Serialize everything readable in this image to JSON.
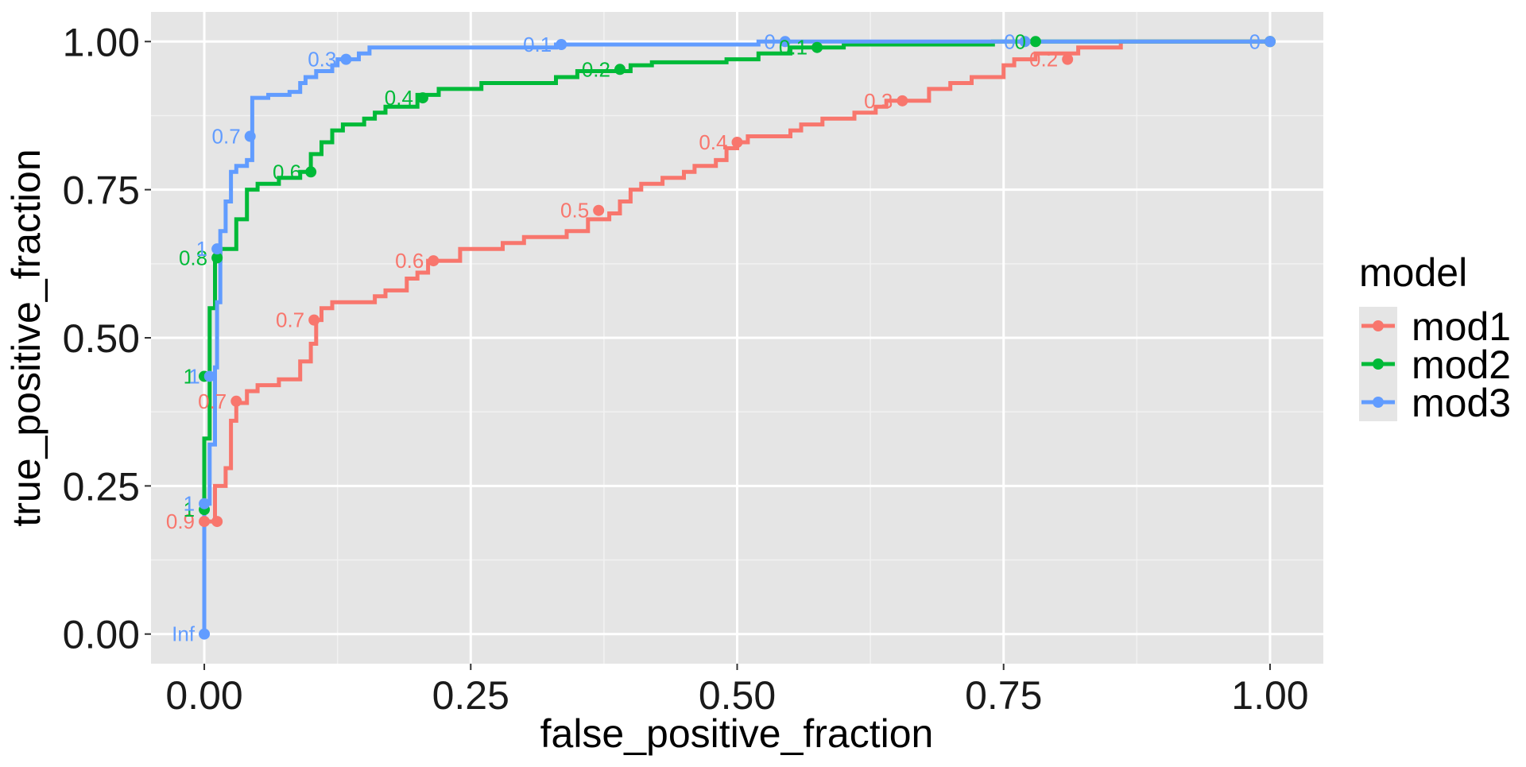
{
  "chart_data": {
    "type": "line",
    "xlabel": "false_positive_fraction",
    "ylabel": "true_positive_fraction",
    "xlim": [
      -0.05,
      1.05
    ],
    "ylim": [
      -0.05,
      1.05
    ],
    "x_ticks": [
      "0.00",
      "0.25",
      "0.50",
      "0.75",
      "1.00"
    ],
    "x_tick_values": [
      0,
      0.25,
      0.5,
      0.75,
      1.0
    ],
    "y_ticks": [
      "0.00",
      "0.25",
      "0.50",
      "0.75",
      "1.00"
    ],
    "y_tick_values": [
      0,
      0.25,
      0.5,
      0.75,
      1.0
    ],
    "grid": true,
    "legend": {
      "title": "model",
      "position": "right"
    },
    "series": [
      {
        "name": "mod1",
        "color": "#F8766D",
        "points": [
          [
            0,
            0
          ],
          [
            0,
            0.19
          ],
          [
            0.01,
            0.19
          ],
          [
            0.01,
            0.25
          ],
          [
            0.02,
            0.25
          ],
          [
            0.02,
            0.28
          ],
          [
            0.025,
            0.28
          ],
          [
            0.025,
            0.36
          ],
          [
            0.03,
            0.36
          ],
          [
            0.03,
            0.39
          ],
          [
            0.04,
            0.39
          ],
          [
            0.04,
            0.41
          ],
          [
            0.05,
            0.41
          ],
          [
            0.05,
            0.42
          ],
          [
            0.07,
            0.42
          ],
          [
            0.07,
            0.43
          ],
          [
            0.09,
            0.43
          ],
          [
            0.09,
            0.46
          ],
          [
            0.1,
            0.46
          ],
          [
            0.1,
            0.49
          ],
          [
            0.105,
            0.49
          ],
          [
            0.105,
            0.53
          ],
          [
            0.11,
            0.53
          ],
          [
            0.11,
            0.55
          ],
          [
            0.12,
            0.55
          ],
          [
            0.12,
            0.56
          ],
          [
            0.16,
            0.56
          ],
          [
            0.16,
            0.57
          ],
          [
            0.17,
            0.57
          ],
          [
            0.17,
            0.58
          ],
          [
            0.19,
            0.58
          ],
          [
            0.19,
            0.6
          ],
          [
            0.2,
            0.6
          ],
          [
            0.2,
            0.61
          ],
          [
            0.21,
            0.61
          ],
          [
            0.21,
            0.63
          ],
          [
            0.24,
            0.63
          ],
          [
            0.24,
            0.65
          ],
          [
            0.28,
            0.65
          ],
          [
            0.28,
            0.66
          ],
          [
            0.3,
            0.66
          ],
          [
            0.3,
            0.67
          ],
          [
            0.34,
            0.67
          ],
          [
            0.34,
            0.68
          ],
          [
            0.36,
            0.68
          ],
          [
            0.36,
            0.7
          ],
          [
            0.38,
            0.7
          ],
          [
            0.38,
            0.71
          ],
          [
            0.39,
            0.71
          ],
          [
            0.39,
            0.73
          ],
          [
            0.4,
            0.73
          ],
          [
            0.4,
            0.75
          ],
          [
            0.41,
            0.75
          ],
          [
            0.41,
            0.76
          ],
          [
            0.43,
            0.76
          ],
          [
            0.43,
            0.77
          ],
          [
            0.45,
            0.77
          ],
          [
            0.45,
            0.78
          ],
          [
            0.46,
            0.78
          ],
          [
            0.46,
            0.79
          ],
          [
            0.48,
            0.79
          ],
          [
            0.48,
            0.8
          ],
          [
            0.49,
            0.8
          ],
          [
            0.49,
            0.82
          ],
          [
            0.5,
            0.82
          ],
          [
            0.5,
            0.83
          ],
          [
            0.51,
            0.83
          ],
          [
            0.51,
            0.84
          ],
          [
            0.55,
            0.84
          ],
          [
            0.55,
            0.85
          ],
          [
            0.56,
            0.85
          ],
          [
            0.56,
            0.86
          ],
          [
            0.58,
            0.86
          ],
          [
            0.58,
            0.87
          ],
          [
            0.61,
            0.87
          ],
          [
            0.61,
            0.88
          ],
          [
            0.63,
            0.88
          ],
          [
            0.63,
            0.89
          ],
          [
            0.64,
            0.89
          ],
          [
            0.64,
            0.9
          ],
          [
            0.68,
            0.9
          ],
          [
            0.68,
            0.92
          ],
          [
            0.7,
            0.92
          ],
          [
            0.7,
            0.93
          ],
          [
            0.72,
            0.93
          ],
          [
            0.72,
            0.94
          ],
          [
            0.75,
            0.94
          ],
          [
            0.75,
            0.96
          ],
          [
            0.76,
            0.96
          ],
          [
            0.76,
            0.97
          ],
          [
            0.78,
            0.97
          ],
          [
            0.78,
            0.98
          ],
          [
            0.82,
            0.98
          ],
          [
            0.82,
            0.99
          ],
          [
            0.86,
            0.99
          ],
          [
            0.86,
            1.0
          ],
          [
            1.0,
            1.0
          ]
        ],
        "markers": [
          {
            "x": 0.0,
            "y": 0.19,
            "label": "0.9"
          },
          {
            "x": 0.012,
            "y": 0.19,
            "label": ""
          },
          {
            "x": 0.03,
            "y": 0.393,
            "label": "0.7"
          },
          {
            "x": 0.103,
            "y": 0.53,
            "label": "0.7"
          },
          {
            "x": 0.215,
            "y": 0.63,
            "label": "0.6"
          },
          {
            "x": 0.37,
            "y": 0.715,
            "label": "0.5"
          },
          {
            "x": 0.5,
            "y": 0.83,
            "label": "0.4"
          },
          {
            "x": 0.655,
            "y": 0.9,
            "label": "0.3"
          },
          {
            "x": 0.81,
            "y": 0.97,
            "label": "0.2"
          },
          {
            "x": 1.0,
            "y": 1.0,
            "label": ""
          }
        ]
      },
      {
        "name": "mod2",
        "color": "#00BA38",
        "points": [
          [
            0,
            0
          ],
          [
            0,
            0.33
          ],
          [
            0.005,
            0.33
          ],
          [
            0.005,
            0.55
          ],
          [
            0.01,
            0.55
          ],
          [
            0.01,
            0.63
          ],
          [
            0.015,
            0.63
          ],
          [
            0.015,
            0.65
          ],
          [
            0.03,
            0.65
          ],
          [
            0.03,
            0.7
          ],
          [
            0.04,
            0.7
          ],
          [
            0.04,
            0.75
          ],
          [
            0.05,
            0.75
          ],
          [
            0.05,
            0.76
          ],
          [
            0.07,
            0.76
          ],
          [
            0.07,
            0.77
          ],
          [
            0.09,
            0.77
          ],
          [
            0.09,
            0.78
          ],
          [
            0.1,
            0.78
          ],
          [
            0.1,
            0.81
          ],
          [
            0.11,
            0.81
          ],
          [
            0.11,
            0.83
          ],
          [
            0.12,
            0.83
          ],
          [
            0.12,
            0.85
          ],
          [
            0.13,
            0.85
          ],
          [
            0.13,
            0.86
          ],
          [
            0.15,
            0.86
          ],
          [
            0.15,
            0.87
          ],
          [
            0.16,
            0.87
          ],
          [
            0.16,
            0.88
          ],
          [
            0.17,
            0.88
          ],
          [
            0.17,
            0.89
          ],
          [
            0.2,
            0.89
          ],
          [
            0.2,
            0.91
          ],
          [
            0.22,
            0.91
          ],
          [
            0.22,
            0.92
          ],
          [
            0.26,
            0.92
          ],
          [
            0.26,
            0.93
          ],
          [
            0.33,
            0.93
          ],
          [
            0.33,
            0.94
          ],
          [
            0.35,
            0.94
          ],
          [
            0.35,
            0.95
          ],
          [
            0.4,
            0.95
          ],
          [
            0.4,
            0.96
          ],
          [
            0.42,
            0.96
          ],
          [
            0.42,
            0.965
          ],
          [
            0.49,
            0.965
          ],
          [
            0.49,
            0.97
          ],
          [
            0.52,
            0.97
          ],
          [
            0.52,
            0.98
          ],
          [
            0.55,
            0.98
          ],
          [
            0.55,
            0.99
          ],
          [
            0.6,
            0.99
          ],
          [
            0.6,
            0.995
          ],
          [
            0.74,
            0.995
          ],
          [
            0.74,
            1.0
          ],
          [
            0.78,
            1.0
          ],
          [
            1.0,
            1.0
          ]
        ],
        "markers": [
          {
            "x": 0.0,
            "y": 0.21,
            "label": "1"
          },
          {
            "x": 0.0,
            "y": 0.435,
            "label": "1"
          },
          {
            "x": 0.012,
            "y": 0.635,
            "label": "0.8"
          },
          {
            "x": 0.1,
            "y": 0.78,
            "label": "0.6"
          },
          {
            "x": 0.205,
            "y": 0.905,
            "label": "0.4"
          },
          {
            "x": 0.39,
            "y": 0.953,
            "label": "0.2"
          },
          {
            "x": 0.575,
            "y": 0.99,
            "label": "0.1"
          },
          {
            "x": 0.78,
            "y": 1.0,
            "label": "0"
          },
          {
            "x": 1.0,
            "y": 1.0,
            "label": ""
          }
        ]
      },
      {
        "name": "mod3",
        "color": "#619CFF",
        "points": [
          [
            0,
            0
          ],
          [
            0,
            0.22
          ],
          [
            0.005,
            0.22
          ],
          [
            0.005,
            0.32
          ],
          [
            0.01,
            0.32
          ],
          [
            0.01,
            0.45
          ],
          [
            0.012,
            0.45
          ],
          [
            0.012,
            0.56
          ],
          [
            0.015,
            0.56
          ],
          [
            0.015,
            0.68
          ],
          [
            0.02,
            0.68
          ],
          [
            0.02,
            0.73
          ],
          [
            0.025,
            0.73
          ],
          [
            0.025,
            0.78
          ],
          [
            0.03,
            0.78
          ],
          [
            0.03,
            0.79
          ],
          [
            0.04,
            0.79
          ],
          [
            0.04,
            0.8
          ],
          [
            0.045,
            0.8
          ],
          [
            0.045,
            0.905
          ],
          [
            0.06,
            0.905
          ],
          [
            0.06,
            0.91
          ],
          [
            0.08,
            0.91
          ],
          [
            0.08,
            0.915
          ],
          [
            0.09,
            0.915
          ],
          [
            0.09,
            0.93
          ],
          [
            0.095,
            0.93
          ],
          [
            0.095,
            0.94
          ],
          [
            0.105,
            0.94
          ],
          [
            0.105,
            0.95
          ],
          [
            0.12,
            0.95
          ],
          [
            0.12,
            0.96
          ],
          [
            0.125,
            0.96
          ],
          [
            0.125,
            0.97
          ],
          [
            0.145,
            0.97
          ],
          [
            0.145,
            0.98
          ],
          [
            0.155,
            0.98
          ],
          [
            0.155,
            0.99
          ],
          [
            0.33,
            0.99
          ],
          [
            0.33,
            0.995
          ],
          [
            0.52,
            0.995
          ],
          [
            0.52,
            1.0
          ],
          [
            1.0,
            1.0
          ]
        ],
        "markers": [
          {
            "x": 0.0,
            "y": 0.0,
            "label": "Inf"
          },
          {
            "x": 0.0,
            "y": 0.22,
            "label": "1"
          },
          {
            "x": 0.005,
            "y": 0.435,
            "label": "1"
          },
          {
            "x": 0.012,
            "y": 0.65,
            "label": "1"
          },
          {
            "x": 0.043,
            "y": 0.84,
            "label": "0.7"
          },
          {
            "x": 0.133,
            "y": 0.97,
            "label": "0.3"
          },
          {
            "x": 0.335,
            "y": 0.995,
            "label": "0.1"
          },
          {
            "x": 0.545,
            "y": 1.0,
            "label": "0"
          },
          {
            "x": 0.77,
            "y": 1.0,
            "label": "0"
          },
          {
            "x": 1.0,
            "y": 1.0,
            "label": "0"
          }
        ]
      }
    ]
  }
}
